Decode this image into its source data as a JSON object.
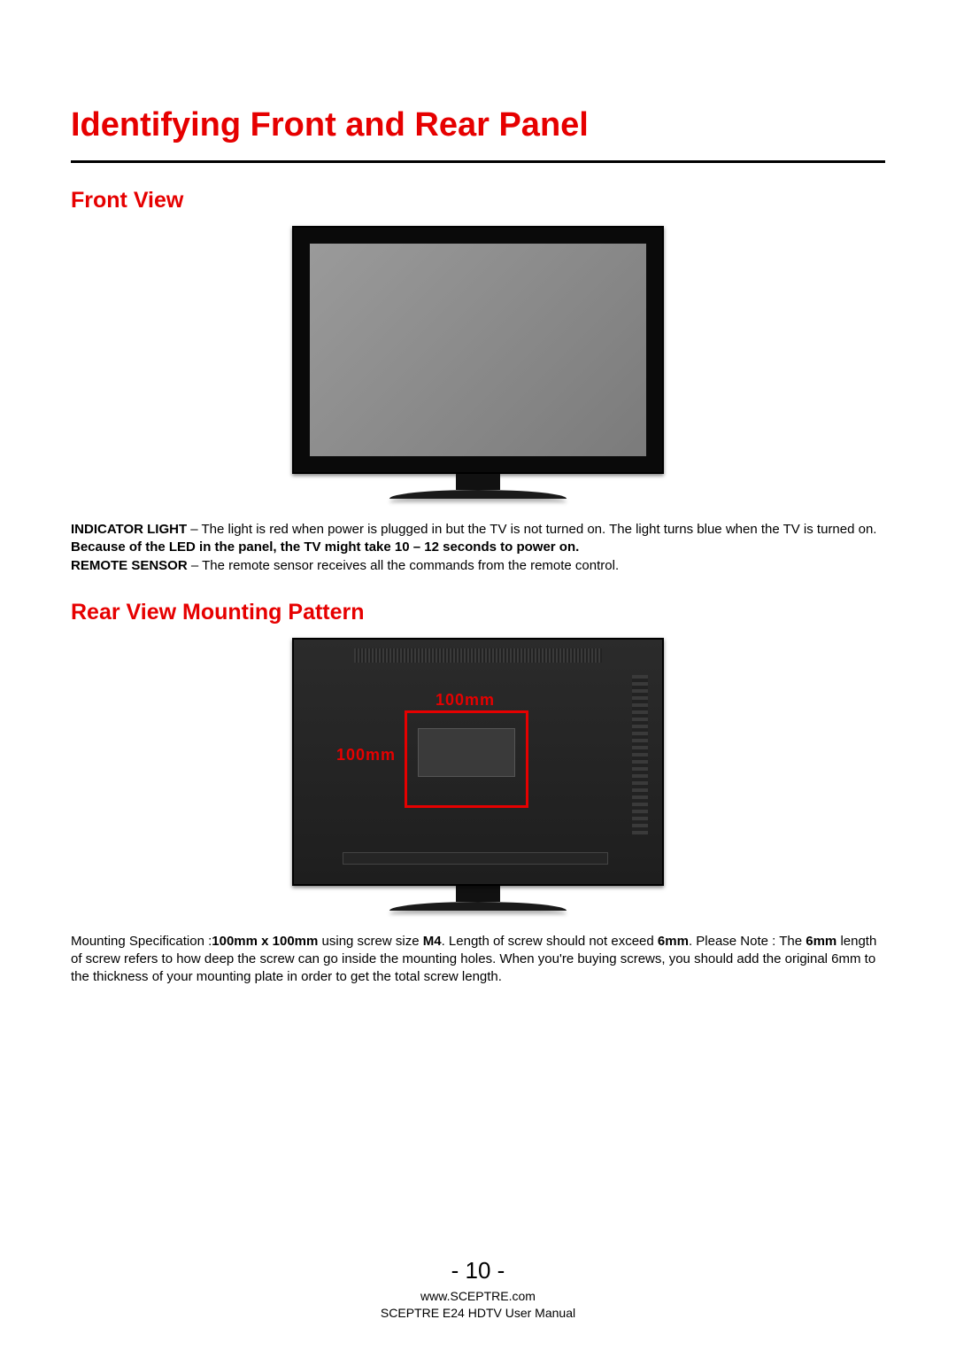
{
  "colors": {
    "heading_red": "#e60000",
    "text_black": "#000000",
    "page_bg": "#ffffff",
    "divider": "#000000",
    "tv_bezel": "#0a0a0a",
    "tv_screen_from": "#9a9a9a",
    "tv_screen_to": "#7b7b7b",
    "tv_rear_from": "#2b2b2b",
    "tv_rear_to": "#1e1e1e",
    "vesa_red": "#e60000"
  },
  "typography": {
    "main_heading_size_pt": 28,
    "sub_heading_size_pt": 18,
    "body_size_pt": 11,
    "page_number_size_pt": 18,
    "footer_size_pt": 10,
    "font_family": "Arial"
  },
  "headings": {
    "main": "Identifying Front and Rear Panel",
    "front_view": "Front View",
    "rear_view": "Rear View Mounting Pattern"
  },
  "front_view": {
    "figure": {
      "type": "product-illustration",
      "description": "Front of flat-panel TV on stand",
      "bezel_color": "#0a0a0a",
      "screen_gradient": [
        "#9a9a9a",
        "#7b7b7b"
      ]
    },
    "indicator_label": "INDICATOR LIGHT",
    "indicator_text_1": " – The light is red when power is plugged in but the TV is not turned on.  The light turns blue when the TV is turned on. ",
    "indicator_bold": "Because of the LED in the panel, the TV might take 10 – 12 seconds to power on.",
    "remote_label": "REMOTE SENSOR",
    "remote_text": " – The remote sensor receives all the commands from the remote control."
  },
  "rear_view": {
    "figure": {
      "type": "product-illustration",
      "description": "Rear of TV showing VESA mounting square",
      "body_gradient": [
        "#2b2b2b",
        "#1e1e1e"
      ],
      "vesa_outline_color": "#e60000",
      "vesa_dimension_horizontal": "100mm",
      "vesa_dimension_vertical": "100mm"
    },
    "mounting_text_1": "Mounting Specification :",
    "mounting_bold_1": "100mm x 100mm",
    "mounting_text_2": " using screw size ",
    "mounting_bold_2": "M4",
    "mounting_text_3": ". Length of screw should not exceed ",
    "mounting_bold_3": "6mm",
    "mounting_text_4": ".  Please Note : The ",
    "mounting_bold_4": "6mm",
    "mounting_text_5": " length of screw refers to how deep the screw can go inside the mounting holes.  When you're buying screws, you should add the original 6mm to the thickness of your mounting plate in order to get the total screw length."
  },
  "footer": {
    "page_number": "- 10 -",
    "website": "www.SCEPTRE.com",
    "manual_title": "SCEPTRE E24 HDTV User Manual"
  }
}
